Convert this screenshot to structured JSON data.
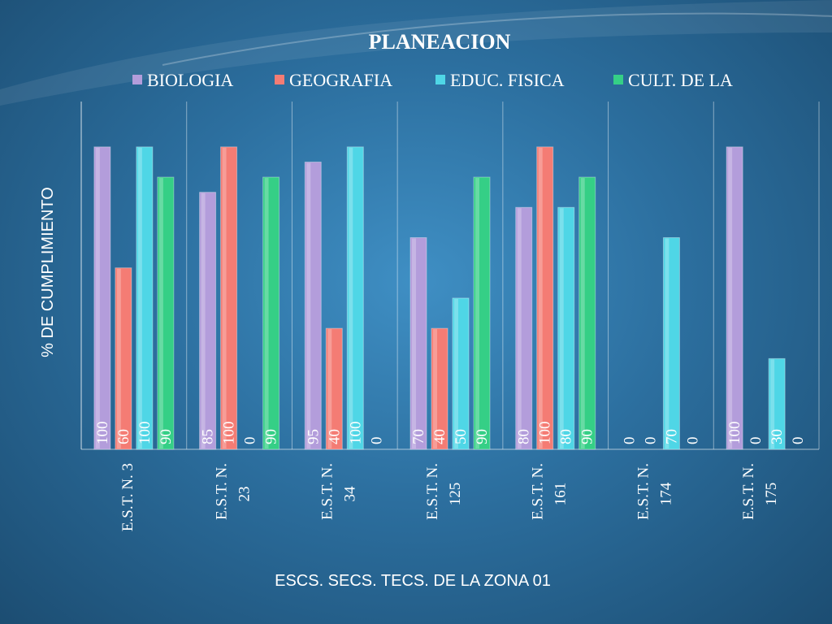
{
  "chart_data": {
    "type": "bar",
    "title": "PLANEACION",
    "ylabel": "%  DE CUMPLIMIENTO",
    "xlabel": "ESCS. SECS. TECS.  DE  LA  ZONA  01",
    "categories": [
      [
        "E.S.T. N. 3"
      ],
      [
        "E.S.T. N.",
        "23"
      ],
      [
        "E.S.T. N.",
        "34"
      ],
      [
        "E.S.T. N.",
        "125"
      ],
      [
        "E.S.T. N.",
        "161"
      ],
      [
        "E.S.T. N.",
        "174"
      ],
      [
        "E.S.T. N.",
        "175"
      ]
    ],
    "series": [
      {
        "name": "BIOLOGIA",
        "color": "#b39ddb",
        "values": [
          100,
          85,
          95,
          70,
          80,
          0,
          100
        ]
      },
      {
        "name": "GEOGRAFIA",
        "color": "#f47c74",
        "values": [
          60,
          100,
          40,
          40,
          100,
          0,
          0
        ]
      },
      {
        "name": "EDUC. FISICA",
        "color": "#4fd6e6",
        "values": [
          100,
          0,
          100,
          50,
          80,
          70,
          30
        ]
      },
      {
        "name": "CULT. DE LA",
        "color": "#35cf86",
        "values": [
          90,
          90,
          0,
          90,
          90,
          0,
          0
        ]
      }
    ],
    "ylim": [
      0,
      115
    ],
    "grid": false,
    "legend_position": "top"
  }
}
